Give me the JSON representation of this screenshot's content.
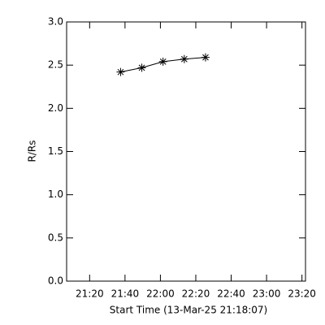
{
  "chart_data": {
    "type": "line",
    "x_label": "Start Time (13-Mar-25 21:18:07)",
    "y_label": "R/Rs",
    "x": [
      1297.5,
      1309.5,
      1321.5,
      1333.5,
      1345.5
    ],
    "series": [
      {
        "color": "#000000",
        "values": [
          2.42,
          2.47,
          2.54,
          2.57,
          2.59
        ]
      }
    ],
    "xlim": [
      1267,
      1402
    ],
    "xticks": [
      {
        "value": 1280,
        "label": "21:20"
      },
      {
        "value": 1300,
        "label": "21:40"
      },
      {
        "value": 1320,
        "label": "22:00"
      },
      {
        "value": 1340,
        "label": "22:20"
      },
      {
        "value": 1360,
        "label": "22:40"
      },
      {
        "value": 1380,
        "label": "23:00"
      },
      {
        "value": 1400,
        "label": "23:20"
      }
    ],
    "ylim": [
      0,
      3
    ],
    "yticks": [
      {
        "value": 0,
        "label": "0.0"
      },
      {
        "value": 0.5,
        "label": "0.5"
      },
      {
        "value": 1,
        "label": "1.0"
      },
      {
        "value": 1.5,
        "label": "1.5"
      },
      {
        "value": 2,
        "label": "2.0"
      },
      {
        "value": 2.5,
        "label": "2.5"
      },
      {
        "value": 3,
        "label": "3.0"
      }
    ],
    "grid": false
  }
}
